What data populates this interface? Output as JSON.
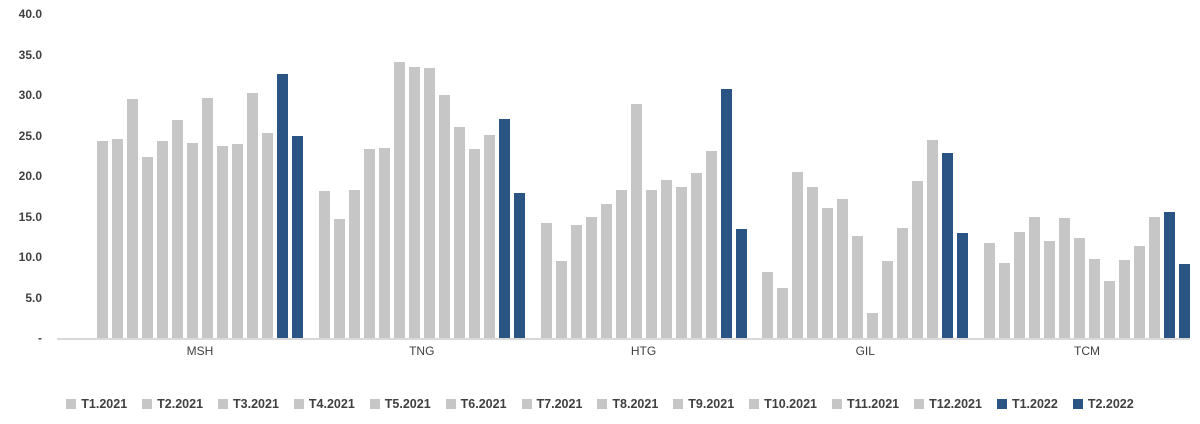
{
  "chart_data": {
    "type": "bar",
    "title": "",
    "xlabel": "",
    "ylabel": "",
    "ylim": [
      0,
      40
    ],
    "grid": false,
    "legend_position": "bottom",
    "y_ticks": [
      "40.0",
      "35.0",
      "30.0",
      "25.0",
      "20.0",
      "15.0",
      "10.0",
      "5.0",
      "-"
    ],
    "categories": [
      "MSH",
      "TNG",
      "HTG",
      "GIL",
      "TCM"
    ],
    "colors": {
      "gray": "#C6C6C6",
      "blue": "#2A5484",
      "axis_line": "#D9D9D9",
      "text": "#404040"
    },
    "series": [
      {
        "name": "T1.2021",
        "color": "#C6C6C6",
        "values": [
          24.3,
          18.1,
          14.2,
          8.1,
          11.7
        ]
      },
      {
        "name": "T2.2021",
        "color": "#C6C6C6",
        "values": [
          24.6,
          14.7,
          9.5,
          6.2,
          9.2
        ]
      },
      {
        "name": "T3.2021",
        "color": "#C6C6C6",
        "values": [
          29.5,
          18.3,
          14.0,
          20.5,
          13.1
        ]
      },
      {
        "name": "T4.2021",
        "color": "#C6C6C6",
        "values": [
          22.4,
          23.3,
          14.9,
          18.6,
          14.9
        ]
      },
      {
        "name": "T5.2021",
        "color": "#C6C6C6",
        "values": [
          24.3,
          23.4,
          16.5,
          16.1,
          12.0
        ]
      },
      {
        "name": "T6.2021",
        "color": "#C6C6C6",
        "values": [
          26.9,
          34.1,
          18.3,
          17.2,
          14.8
        ]
      },
      {
        "name": "T7.2021",
        "color": "#C6C6C6",
        "values": [
          24.1,
          33.4,
          28.9,
          12.6,
          12.4
        ]
      },
      {
        "name": "T8.2021",
        "color": "#C6C6C6",
        "values": [
          29.6,
          33.3,
          18.3,
          3.1,
          9.8
        ]
      },
      {
        "name": "T9.2021",
        "color": "#C6C6C6",
        "values": [
          23.7,
          30.0,
          19.5,
          9.5,
          7.1
        ]
      },
      {
        "name": "T10.2021",
        "color": "#C6C6C6",
        "values": [
          24.0,
          26.1,
          18.6,
          13.6,
          9.6
        ]
      },
      {
        "name": "T11.2021",
        "color": "#C6C6C6",
        "values": [
          30.3,
          23.3,
          20.4,
          19.4,
          11.3
        ]
      },
      {
        "name": "T12.2021",
        "color": "#C6C6C6",
        "values": [
          25.3,
          25.1,
          23.1,
          24.5,
          14.9
        ]
      },
      {
        "name": "T1.2022",
        "color": "#2A5484",
        "values": [
          32.6,
          27.1,
          30.8,
          22.9,
          15.6
        ]
      },
      {
        "name": "T2.2022",
        "color": "#2A5484",
        "values": [
          24.9,
          17.9,
          13.5,
          13.0,
          9.1
        ]
      }
    ]
  }
}
